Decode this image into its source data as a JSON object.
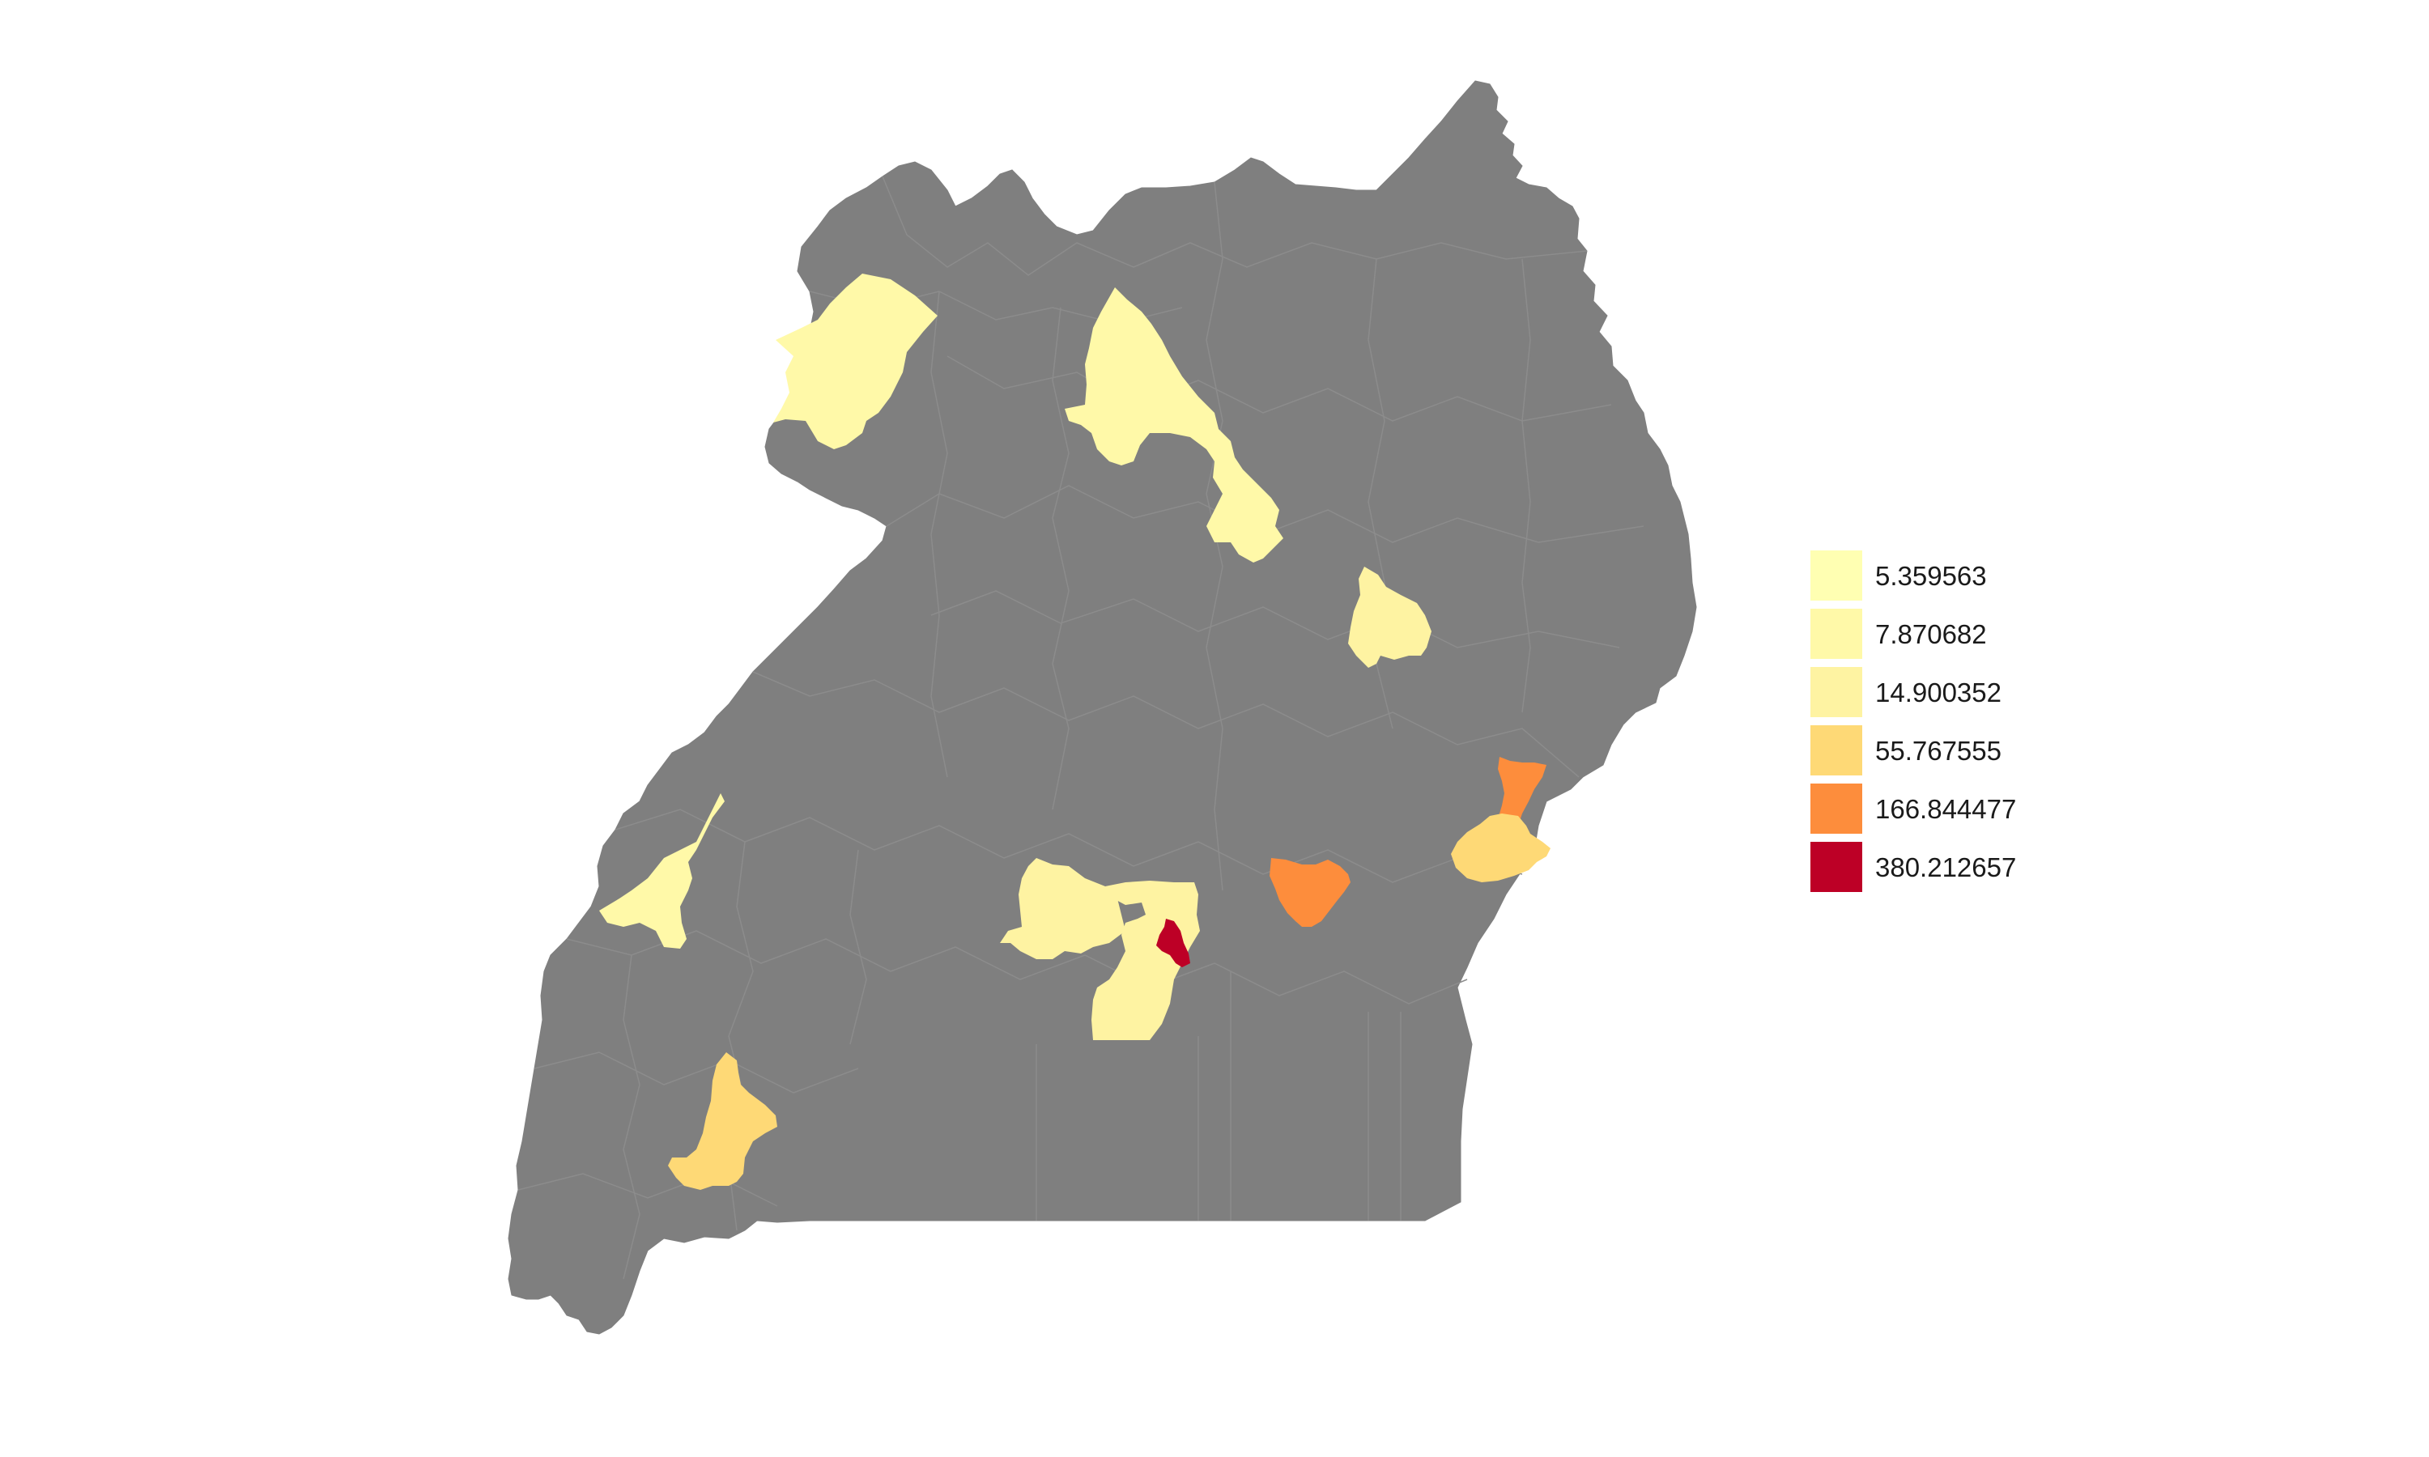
{
  "map": {
    "base_fill": "#7f7f7f",
    "border_color": "#8c8c8c",
    "background": "#ffffff"
  },
  "legend": {
    "items": [
      {
        "label": "5.359563",
        "color": "#ffffb2"
      },
      {
        "label": "7.870682",
        "color": "#fff9a8"
      },
      {
        "label": "14.900352",
        "color": "#fef3a2"
      },
      {
        "label": "55.767555",
        "color": "#fed976"
      },
      {
        "label": "166.844477",
        "color": "#fd8d3c"
      },
      {
        "label": "380.212657",
        "color": "#bd0026"
      }
    ]
  },
  "highlighted_districts": [
    {
      "id": "north-west",
      "value_class": 1
    },
    {
      "id": "north-central",
      "value_class": 1
    },
    {
      "id": "north-east",
      "value_class": 2
    },
    {
      "id": "west",
      "value_class": 1
    },
    {
      "id": "central-left",
      "value_class": 2
    },
    {
      "id": "central-right",
      "value_class": 2
    },
    {
      "id": "capital",
      "value_class": 5
    },
    {
      "id": "east-central",
      "value_class": 4
    },
    {
      "id": "east-border-north",
      "value_class": 4
    },
    {
      "id": "east-border-south",
      "value_class": 3
    },
    {
      "id": "south-west",
      "value_class": 3
    }
  ]
}
